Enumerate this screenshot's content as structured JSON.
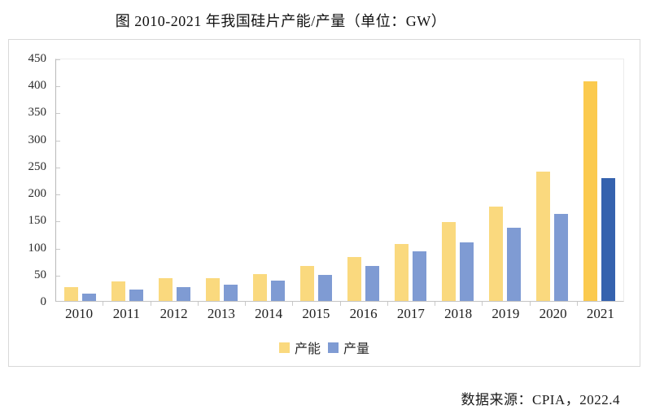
{
  "title": "图 2010-2021 年我国硅片产能/产量（单位：GW）",
  "source": "数据来源：CPIA，2022.4",
  "chart_data": {
    "type": "bar",
    "title": "图 2010-2021 年我国硅片产能/产量（单位：GW）",
    "unit": "GW",
    "categories": [
      "2010",
      "2011",
      "2012",
      "2013",
      "2014",
      "2015",
      "2016",
      "2017",
      "2018",
      "2019",
      "2020",
      "2021"
    ],
    "series": [
      {
        "name": "产能",
        "values": [
          25,
          36,
          42,
          42,
          50,
          65,
          82,
          105,
          146,
          174,
          240,
          407
        ],
        "color": "#fad97e",
        "highlight_color": "#fbca4e"
      },
      {
        "name": "产量",
        "values": [
          13,
          21,
          26,
          30,
          38,
          48,
          65,
          92,
          108,
          135,
          161,
          227
        ],
        "color": "#7f9bd3",
        "highlight_color": "#3562ae"
      }
    ],
    "highlight_category": "2021",
    "ylim": [
      0,
      450
    ],
    "ytick_step": 50,
    "grid": false,
    "legend_position": "bottom"
  },
  "legend": {
    "items": [
      {
        "label": "产能",
        "color": "#fad97e"
      },
      {
        "label": "产量",
        "color": "#7f9bd3"
      }
    ]
  }
}
